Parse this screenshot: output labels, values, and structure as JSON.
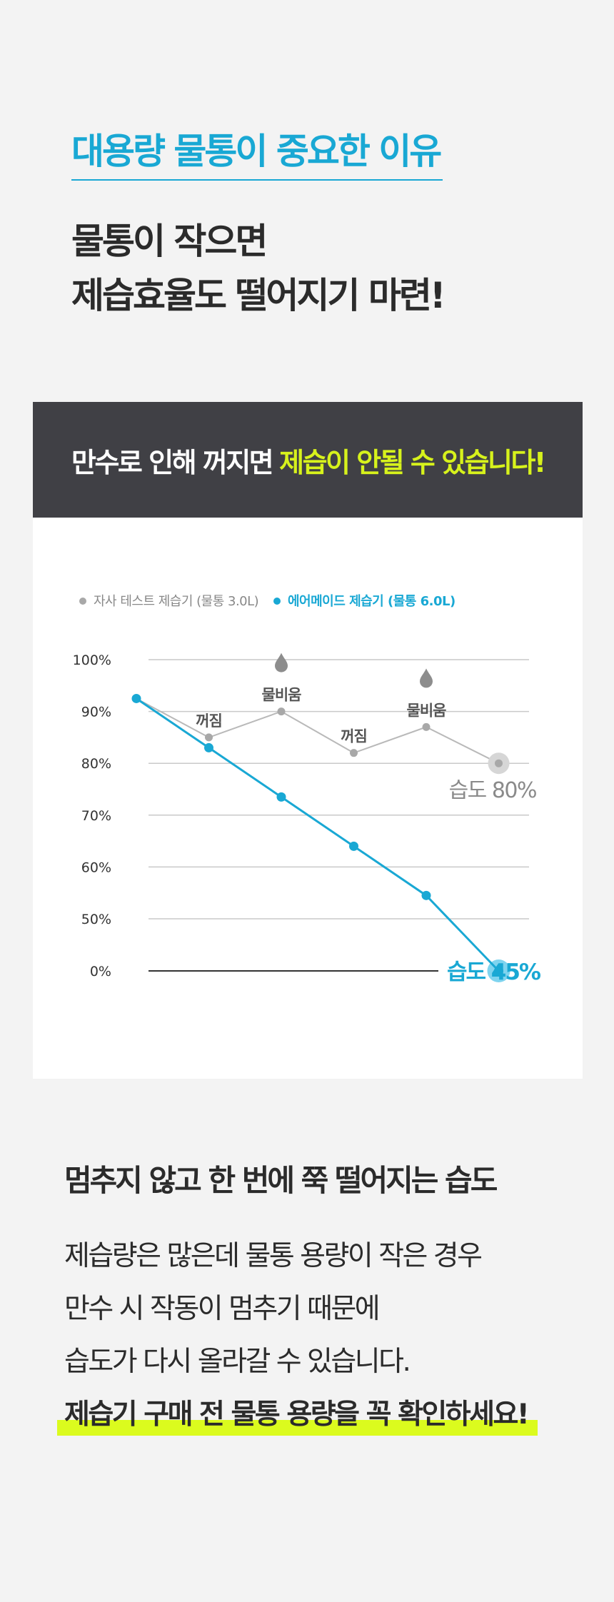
{
  "header": {
    "section_title": "대용량 물통이 중요한 이유",
    "headline_line1": "물통이 작으면",
    "headline_line2": "제습효율도 떨어지기 마련!"
  },
  "banner": {
    "text_normal": "만수로 인해 꺼지면",
    "text_highlight": "제습이 안될 수 있습니다!",
    "bg_color": "#404045",
    "highlight_color": "#d7f21c"
  },
  "chart_data": {
    "type": "line",
    "x": [
      0,
      1,
      2,
      3,
      4,
      5
    ],
    "y_ticks": [
      "100%",
      "90%",
      "80%",
      "70%",
      "60%",
      "50%",
      "0%"
    ],
    "y_tick_values": [
      100,
      90,
      80,
      70,
      60,
      50,
      0
    ],
    "axis_note": "y axis is broken between 50% and 0%",
    "grid": true,
    "legend_position": "top-left",
    "series": [
      {
        "name": "자사 테스트 제습기 (물통 3.0L)",
        "color": "#b9b9b9",
        "values": [
          92.5,
          85,
          90,
          82,
          87,
          80
        ],
        "end_label": "습도 80%"
      },
      {
        "name": "에어메이드 제습기 (물통 6.0L)",
        "color": "#19a8d4",
        "values": [
          92.5,
          83,
          73.5,
          64,
          54.5,
          45
        ],
        "end_label": "습도 45%"
      }
    ],
    "annotations": [
      {
        "series": 0,
        "index": 1,
        "text": "꺼짐",
        "icon": "none"
      },
      {
        "series": 0,
        "index": 2,
        "text": "물비움",
        "icon": "water-drop-icon"
      },
      {
        "series": 0,
        "index": 3,
        "text": "꺼짐",
        "icon": "none"
      },
      {
        "series": 0,
        "index": 4,
        "text": "물비움",
        "icon": "water-drop-icon"
      }
    ]
  },
  "bottom": {
    "sub_title": "멈추지 않고 한 번에 쭉 떨어지는 습도",
    "lines": [
      "제습량은 많은데 물통 용량이 작은 경우",
      "만수 시 작동이 멈추기 때문에",
      "습도가 다시 올라갈 수 있습니다."
    ],
    "emphasis": "제습기 구매 전 물통 용량을 꼭 확인하세요!",
    "emphasis_color": "#dbfb1e"
  }
}
